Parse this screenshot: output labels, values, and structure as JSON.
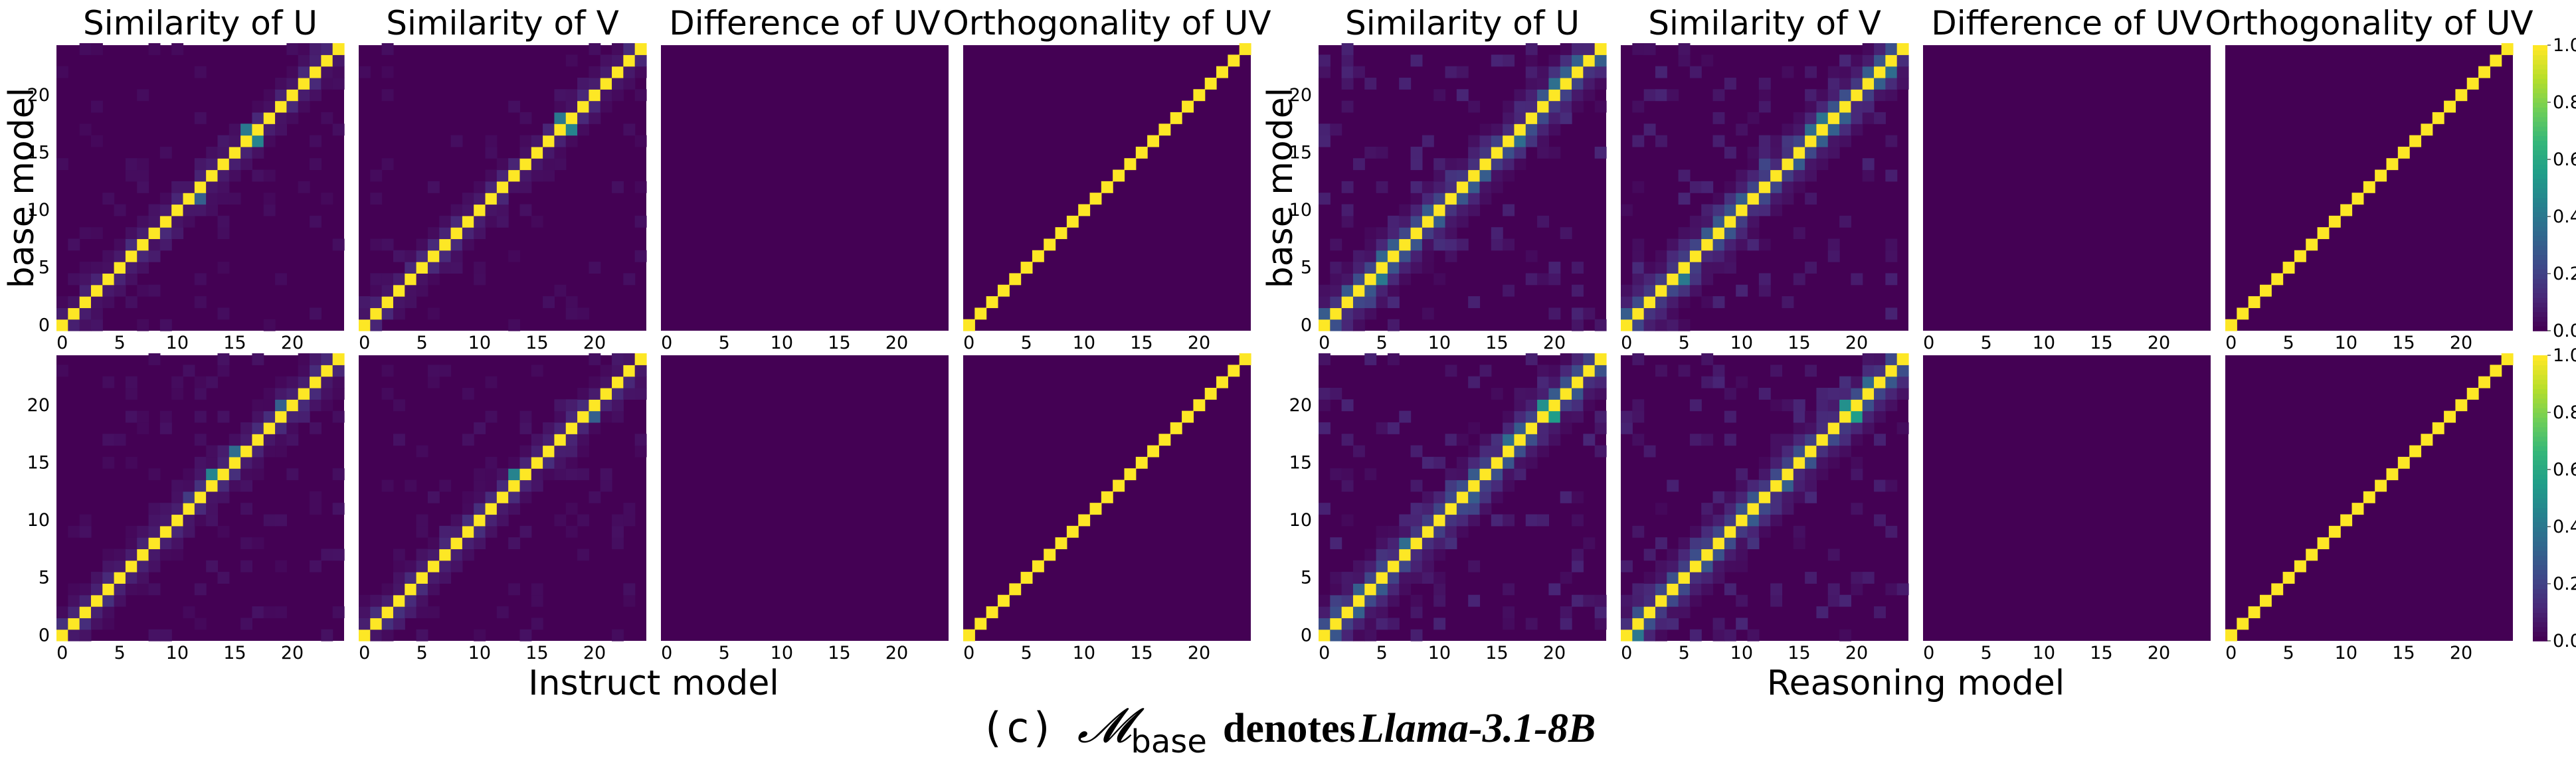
{
  "figure": {
    "caption_label": "(c)",
    "caption_symbol": "𝓜",
    "caption_subscript": "base",
    "caption_text": "denotes",
    "caption_model": "Llama-3.1-8B"
  },
  "chart_data": [
    {
      "type": "heatmap",
      "group": "Instruct",
      "xlabel": "Instruct model",
      "ylabel": "base model",
      "rows": [
        {
          "panels": [
            {
              "title": "Similarity of U",
              "pattern": "diagonal",
              "spread": 0.12,
              "hot": [
                {
                  "at": [
                    16,
                    17
                  ],
                  "v": 0.45
                },
                {
                  "at": [
                    17,
                    16
                  ],
                  "v": 0.4
                },
                {
                  "at": [
                    11,
                    12
                  ],
                  "v": 0.3
                }
              ]
            },
            {
              "title": "Similarity of V",
              "pattern": "diagonal",
              "spread": 0.12,
              "hot": [
                {
                  "at": [
                    17,
                    18
                  ],
                  "v": 0.45
                },
                {
                  "at": [
                    18,
                    17
                  ],
                  "v": 0.4
                }
              ]
            },
            {
              "title": "Difference of UV",
              "pattern": "zero"
            },
            {
              "title": "Orthogonality of UV",
              "pattern": "diagonal",
              "spread": 0
            }
          ],
          "colorbar": false
        },
        {
          "panels": [
            {
              "title": "",
              "pattern": "diagonal",
              "spread": 0.14,
              "hot": [
                {
                  "at": [
                    14,
                    13
                  ],
                  "v": 0.45
                },
                {
                  "at": [
                    16,
                    15
                  ],
                  "v": 0.35
                },
                {
                  "at": [
                    20,
                    19
                  ],
                  "v": 0.3
                }
              ]
            },
            {
              "title": "",
              "pattern": "diagonal",
              "spread": 0.14,
              "hot": [
                {
                  "at": [
                    14,
                    13
                  ],
                  "v": 0.45
                },
                {
                  "at": [
                    19,
                    20
                  ],
                  "v": 0.3
                }
              ]
            },
            {
              "title": "",
              "pattern": "zero"
            },
            {
              "title": "",
              "pattern": "diagonal",
              "spread": 0
            }
          ],
          "colorbar": false
        }
      ],
      "x_ticks": [
        "0",
        "5",
        "10",
        "15",
        "20"
      ],
      "y_ticks": [
        "0",
        "5",
        "10",
        "15",
        "20"
      ],
      "grid": false
    },
    {
      "type": "heatmap",
      "group": "Reasoning",
      "xlabel": "Reasoning model",
      "ylabel": "base model",
      "rows": [
        {
          "panels": [
            {
              "title": "Similarity of U",
              "pattern": "diagonal",
              "spread": 0.3,
              "hot": [
                {
                  "at": [
                    4,
                    5
                  ],
                  "v": 0.4
                },
                {
                  "at": [
                    16,
                    17
                  ],
                  "v": 0.35
                },
                {
                  "at": [
                    22,
                    21
                  ],
                  "v": 0.3
                }
              ]
            },
            {
              "title": "Similarity of V",
              "pattern": "diagonal",
              "spread": 0.3,
              "hot": [
                {
                  "at": [
                    4,
                    5
                  ],
                  "v": 0.4
                },
                {
                  "at": [
                    17,
                    16
                  ],
                  "v": 0.35
                },
                {
                  "at": [
                    22,
                    23
                  ],
                  "v": 0.35
                }
              ]
            },
            {
              "title": "Difference of UV",
              "pattern": "zero"
            },
            {
              "title": "Orthogonality of UV",
              "pattern": "diagonal",
              "spread": 0
            }
          ],
          "colorbar": true
        },
        {
          "panels": [
            {
              "title": "",
              "pattern": "diagonal",
              "spread": 0.3,
              "hot": [
                {
                  "at": [
                    19,
                    20
                  ],
                  "v": 0.55
                },
                {
                  "at": [
                    20,
                    19
                  ],
                  "v": 0.5
                },
                {
                  "at": [
                    19,
                    19
                  ],
                  "v": 0.6
                },
                {
                  "at": [
                    20,
                    20
                  ],
                  "v": 0.55
                }
              ]
            },
            {
              "title": "",
              "pattern": "diagonal",
              "spread": 0.3,
              "hot": [
                {
                  "at": [
                    19,
                    20
                  ],
                  "v": 0.55
                },
                {
                  "at": [
                    20,
                    19
                  ],
                  "v": 0.5
                },
                {
                  "at": [
                    19,
                    19
                  ],
                  "v": 0.6
                },
                {
                  "at": [
                    20,
                    20
                  ],
                  "v": 0.6
                }
              ]
            },
            {
              "title": "",
              "pattern": "zero"
            },
            {
              "title": "",
              "pattern": "diagonal",
              "spread": 0
            }
          ],
          "colorbar": true
        }
      ],
      "x_ticks": [
        "0",
        "5",
        "10",
        "15",
        "20"
      ],
      "y_ticks": [
        "0",
        "5",
        "10",
        "15",
        "20"
      ],
      "colorbar_ticks": [
        "0.0",
        "0.2",
        "0.4",
        "0.6",
        "0.8",
        "1.0"
      ],
      "grid": false
    }
  ],
  "shared": {
    "matrix_size": 25,
    "value_range": [
      0,
      1
    ],
    "colormap": [
      "#440154",
      "#482878",
      "#3e4989",
      "#31688e",
      "#26828e",
      "#1f9e89",
      "#35b779",
      "#6ece58",
      "#b5de2b",
      "#fde725"
    ]
  }
}
